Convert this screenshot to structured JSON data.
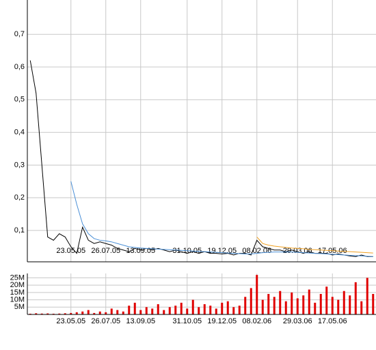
{
  "chart_data": [
    {
      "type": "line",
      "categories": [
        null,
        null,
        null,
        null,
        null,
        null,
        null,
        "23.05.05",
        null,
        null,
        null,
        null,
        null,
        "26.07.05",
        null,
        null,
        null,
        null,
        null,
        "13.09.05",
        null,
        null,
        null,
        null,
        null,
        null,
        null,
        "31.10.05",
        null,
        null,
        null,
        null,
        null,
        "19.12.05",
        null,
        null,
        null,
        null,
        null,
        "08.02.06",
        null,
        null,
        null,
        null,
        null,
        null,
        "29.03.06",
        null,
        null,
        null,
        null,
        null,
        "17.05.06",
        null,
        null,
        null,
        null,
        null,
        null,
        null
      ],
      "series": [
        {
          "color": "#000000",
          "values": [
            0.62,
            0.52,
            0.3,
            0.08,
            0.07,
            0.09,
            0.08,
            0.05,
            0.03,
            0.11,
            0.07,
            0.06,
            0.065,
            0.06,
            0.055,
            0.045,
            0.04,
            0.035,
            0.045,
            0.04,
            0.045,
            0.04,
            0.045,
            0.04,
            0.035,
            0.04,
            0.035,
            0.03,
            0.035,
            0.03,
            0.035,
            0.03,
            0.03,
            0.028,
            0.03,
            0.025,
            0.03,
            0.03,
            0.025,
            0.07,
            0.05,
            0.045,
            0.04,
            0.04,
            0.035,
            0.04,
            0.035,
            0.03,
            0.035,
            0.03,
            0.03,
            0.03,
            0.025,
            0.028,
            0.025,
            0.022,
            0.02,
            0.025,
            0.02,
            0.02
          ]
        },
        {
          "color": "#4a8fd6",
          "values": [
            null,
            null,
            null,
            null,
            null,
            null,
            null,
            0.25,
            0.18,
            0.12,
            0.09,
            0.075,
            0.07,
            0.068,
            0.065,
            0.06,
            0.055,
            0.05,
            0.048,
            0.046,
            0.045,
            0.044,
            0.043,
            0.042,
            0.041,
            0.04,
            0.039,
            0.038,
            0.037,
            0.036,
            0.035,
            0.034,
            0.033,
            0.032,
            0.031,
            0.03,
            0.029,
            0.028,
            0.028,
            0.03,
            0.032,
            0.033,
            0.034,
            0.034,
            0.034,
            0.034,
            0.033,
            0.032,
            0.031,
            0.03,
            0.029,
            0.028,
            0.027,
            0.026,
            0.025,
            0.024,
            0.023,
            0.022,
            0.021,
            0.02
          ]
        },
        {
          "color": "#f0a020",
          "values": [
            null,
            null,
            null,
            null,
            null,
            null,
            null,
            null,
            null,
            null,
            null,
            null,
            null,
            null,
            null,
            null,
            null,
            null,
            null,
            null,
            null,
            null,
            null,
            null,
            null,
            null,
            null,
            null,
            null,
            null,
            null,
            null,
            null,
            null,
            null,
            null,
            null,
            null,
            null,
            0.08,
            0.06,
            0.055,
            0.052,
            0.05,
            0.048,
            0.046,
            0.045,
            0.044,
            0.042,
            0.041,
            0.04,
            0.039,
            0.038,
            0.037,
            0.036,
            0.035,
            0.034,
            0.033,
            0.032,
            0.031
          ]
        }
      ],
      "ylim": [
        0.004,
        0.805
      ],
      "yticks": [
        {
          "value": 0.1,
          "label": "0,1"
        },
        {
          "value": 0.2,
          "label": "0,2"
        },
        {
          "value": 0.3,
          "label": "0,3"
        },
        {
          "value": 0.4,
          "label": "0,4"
        },
        {
          "value": 0.5,
          "label": "0,5"
        },
        {
          "value": 0.6,
          "label": "0,6"
        },
        {
          "value": 0.7,
          "label": "0,7"
        }
      ],
      "grid": true
    },
    {
      "type": "bar",
      "categories": [
        null,
        null,
        null,
        null,
        null,
        null,
        null,
        "23.05.05",
        null,
        null,
        null,
        null,
        null,
        "26.07.05",
        null,
        null,
        null,
        null,
        null,
        "13.09.05",
        null,
        null,
        null,
        null,
        null,
        null,
        null,
        "31.10.05",
        null,
        null,
        null,
        null,
        null,
        "19.12.05",
        null,
        null,
        null,
        null,
        null,
        "08.02.06",
        null,
        null,
        null,
        null,
        null,
        null,
        "29.03.06",
        null,
        null,
        null,
        null,
        null,
        "17.05.06",
        null,
        null,
        null,
        null,
        null,
        null,
        null
      ],
      "color": "#e00000",
      "values": [
        0.5,
        0.8,
        0.6,
        0.7,
        0.5,
        0.6,
        0.8,
        1,
        1.5,
        2,
        3,
        1,
        2,
        1.5,
        4,
        3,
        2,
        6,
        8,
        3,
        5,
        4,
        7,
        3,
        5,
        6,
        8,
        4,
        10,
        5,
        7,
        6,
        4,
        8,
        9,
        5,
        6,
        12,
        18,
        27,
        10,
        14,
        12,
        16,
        9,
        15,
        11,
        13,
        17,
        8,
        14,
        19,
        12,
        10,
        16,
        13,
        22,
        9,
        25,
        14
      ],
      "ylim": [
        0,
        28
      ],
      "yticks": [
        {
          "value": 5,
          "label": "5M"
        },
        {
          "value": 10,
          "label": "10M"
        },
        {
          "value": 15,
          "label": "15M"
        },
        {
          "value": 20,
          "label": "20M"
        },
        {
          "value": 25,
          "label": "25M"
        }
      ],
      "grid": true
    }
  ]
}
